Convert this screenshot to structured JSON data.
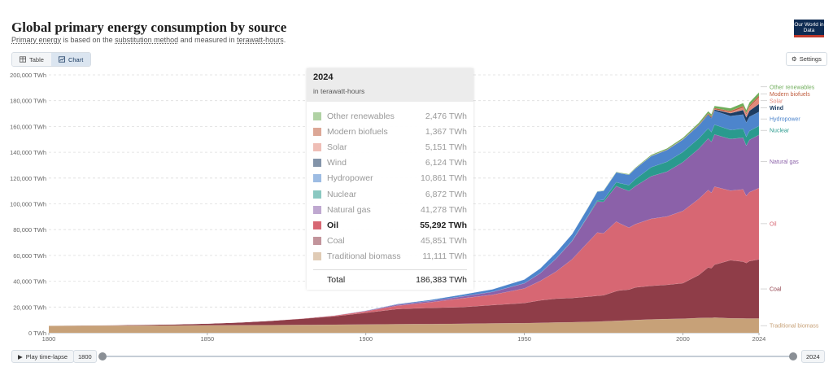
{
  "header": {
    "title": "Global primary energy consumption by source",
    "subtitle_link1": "Primary energy",
    "subtitle_mid1": " is based on the ",
    "subtitle_link2": "substitution method",
    "subtitle_mid2": " and measured in ",
    "subtitle_link3": "terawatt-hours",
    "subtitle_end": ".",
    "logo_text": "Our World in Data"
  },
  "toolbar": {
    "table_label": "Table",
    "chart_label": "Chart",
    "settings_label": "Settings"
  },
  "tooltip": {
    "year": "2024",
    "unit": "in terawatt-hours",
    "highlight": "Oil",
    "rows": [
      {
        "name": "Other renewables",
        "value": "2,476 TWh"
      },
      {
        "name": "Modern biofuels",
        "value": "1,367 TWh"
      },
      {
        "name": "Solar",
        "value": "5,151 TWh"
      },
      {
        "name": "Wind",
        "value": "6,124 TWh"
      },
      {
        "name": "Hydropower",
        "value": "10,861 TWh"
      },
      {
        "name": "Nuclear",
        "value": "6,872 TWh"
      },
      {
        "name": "Natural gas",
        "value": "41,278 TWh"
      },
      {
        "name": "Oil",
        "value": "55,292 TWh"
      },
      {
        "name": "Coal",
        "value": "45,851 TWh"
      },
      {
        "name": "Traditional biomass",
        "value": "11,111 TWh"
      }
    ],
    "total_label": "Total",
    "total_value": "186,383 TWh"
  },
  "timeline": {
    "play_label": "Play time-lapse",
    "start_year": "1800",
    "end_year": "2024"
  },
  "chart_data": {
    "type": "area",
    "stacked": true,
    "title": "Global primary energy consumption by source",
    "ylabel": "",
    "xlabel": "",
    "ylim": [
      0,
      200000
    ],
    "y_ticks": [
      0,
      20000,
      40000,
      60000,
      80000,
      100000,
      120000,
      140000,
      160000,
      180000,
      200000
    ],
    "y_tick_labels": [
      "0 TWh",
      "20,000 TWh",
      "40,000 TWh",
      "60,000 TWh",
      "80,000 TWh",
      "100,000 TWh",
      "120,000 TWh",
      "140,000 TWh",
      "160,000 TWh",
      "180,000 TWh",
      "200,000 TWh"
    ],
    "x_ticks": [
      1800,
      1850,
      1900,
      1950,
      2000,
      2024
    ],
    "xlim": [
      1800,
      2024
    ],
    "grid": "horizontal-dashed",
    "legend": "right-end-labels",
    "x": [
      1800,
      1820,
      1840,
      1850,
      1860,
      1870,
      1880,
      1890,
      1900,
      1910,
      1920,
      1930,
      1940,
      1950,
      1955,
      1960,
      1965,
      1970,
      1973,
      1975,
      1979,
      1980,
      1983,
      1985,
      1990,
      1995,
      2000,
      2005,
      2008,
      2009,
      2010,
      2015,
      2019,
      2020,
      2021,
      2024
    ],
    "series": [
      {
        "name": "Traditional biomass",
        "color": "#c7a178",
        "values": [
          5500,
          5600,
          5700,
          5800,
          5900,
          6000,
          6100,
          6300,
          6500,
          6700,
          6800,
          7000,
          7300,
          7500,
          7700,
          8000,
          8200,
          8500,
          8700,
          8900,
          9300,
          9400,
          9700,
          9900,
          10400,
          10700,
          11000,
          11500,
          11700,
          11600,
          11800,
          11300,
          11200,
          11100,
          11100,
          11111
        ]
      },
      {
        "name": "Coal",
        "color": "#8f3d48",
        "values": [
          100,
          400,
          900,
          1400,
          2200,
          3300,
          4800,
          6500,
          9000,
          11800,
          12500,
          12900,
          14200,
          15600,
          17500,
          18500,
          18800,
          19500,
          20000,
          20200,
          23000,
          23500,
          23800,
          25300,
          26000,
          26500,
          27500,
          33300,
          39000,
          38500,
          41000,
          45000,
          44000,
          43000,
          44500,
          45851
        ]
      },
      {
        "name": "Oil",
        "color": "#d76773",
        "values": [
          0,
          0,
          0,
          0,
          0,
          100,
          200,
          500,
          1200,
          2600,
          4300,
          6700,
          8000,
          11300,
          15000,
          21000,
          30000,
          42000,
          49000,
          48000,
          54000,
          52000,
          48000,
          49000,
          52000,
          53000,
          56000,
          59000,
          60000,
          58500,
          60500,
          54000,
          56000,
          52000,
          53500,
          55292
        ]
      },
      {
        "name": "Natural gas",
        "color": "#8b61a9",
        "values": [
          0,
          0,
          0,
          0,
          0,
          0,
          100,
          200,
          400,
          800,
          1000,
          1500,
          2300,
          4000,
          6000,
          10000,
          14000,
          20000,
          24000,
          24500,
          27500,
          27800,
          28500,
          29500,
          33000,
          34800,
          37800,
          39000,
          40000,
          39500,
          40500,
          40000,
          40000,
          39000,
          40500,
          41278
        ]
      },
      {
        "name": "Nuclear",
        "color": "#2a9a8e",
        "values": [
          0,
          0,
          0,
          0,
          0,
          0,
          0,
          0,
          0,
          0,
          0,
          0,
          0,
          0,
          0,
          50,
          250,
          500,
          1000,
          1500,
          3000,
          3400,
          4500,
          5500,
          7000,
          7600,
          7900,
          7900,
          7800,
          7500,
          7600,
          7000,
          7100,
          6800,
          6900,
          6872
        ]
      },
      {
        "name": "Hydropower",
        "color": "#4d85cc",
        "values": [
          0,
          0,
          0,
          0,
          0,
          0,
          0,
          0,
          200,
          500,
          900,
          1400,
          2000,
          3000,
          3800,
          4700,
          5200,
          6200,
          6800,
          7000,
          7700,
          7800,
          8000,
          8100,
          8600,
          9200,
          9600,
          10000,
          10400,
          10500,
          10800,
          10800,
          11000,
          11100,
          11000,
          10861
        ]
      },
      {
        "name": "Wind",
        "color": "#1d3d63",
        "values": [
          0,
          0,
          0,
          0,
          0,
          0,
          0,
          0,
          0,
          0,
          0,
          0,
          0,
          0,
          0,
          0,
          0,
          0,
          0,
          0,
          0,
          0,
          0,
          0,
          10,
          20,
          70,
          250,
          550,
          700,
          900,
          2200,
          3500,
          4000,
          4700,
          6124
        ]
      },
      {
        "name": "Solar",
        "color": "#e2887a",
        "values": [
          0,
          0,
          0,
          0,
          0,
          0,
          0,
          0,
          0,
          0,
          0,
          0,
          0,
          0,
          0,
          0,
          0,
          0,
          0,
          0,
          0,
          0,
          0,
          0,
          0,
          0,
          5,
          20,
          60,
          100,
          180,
          650,
          1800,
          2200,
          2800,
          5151
        ]
      },
      {
        "name": "Modern biofuels",
        "color": "#c05e3f",
        "values": [
          0,
          0,
          0,
          0,
          0,
          0,
          0,
          0,
          0,
          0,
          0,
          0,
          0,
          0,
          0,
          0,
          0,
          0,
          0,
          0,
          0,
          50,
          100,
          150,
          200,
          250,
          300,
          500,
          800,
          900,
          950,
          1100,
          1300,
          1250,
          1300,
          1367
        ]
      },
      {
        "name": "Other renewables",
        "color": "#6fad5a",
        "values": [
          0,
          0,
          0,
          0,
          0,
          0,
          0,
          0,
          0,
          0,
          0,
          0,
          0,
          0,
          0,
          50,
          100,
          150,
          200,
          250,
          300,
          350,
          450,
          500,
          700,
          900,
          1000,
          1300,
          1500,
          1600,
          1700,
          2000,
          2200,
          2200,
          2300,
          2476
        ]
      }
    ]
  }
}
